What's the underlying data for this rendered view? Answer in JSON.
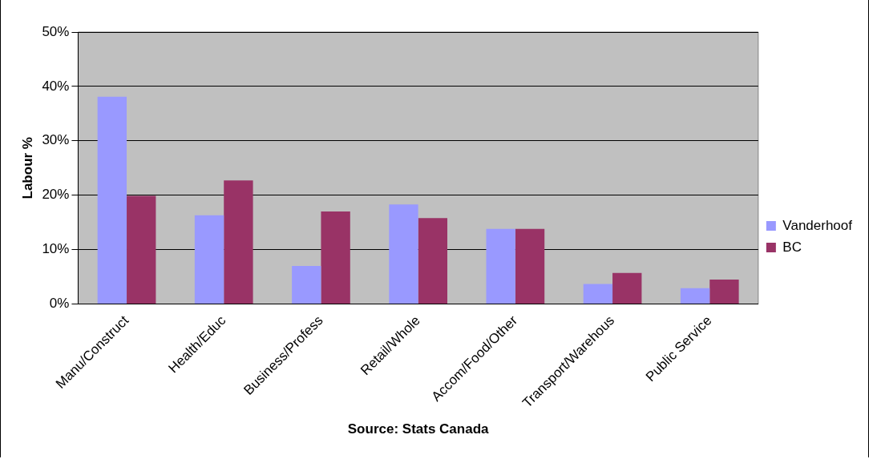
{
  "chart_data": {
    "type": "bar",
    "categories": [
      "Manu/Construct",
      "Health/Educ",
      "Business/Profess",
      "Retail/Whole",
      "Accom/Food/Other",
      "Transport/Warehous",
      "Public Service"
    ],
    "series": [
      {
        "name": "Vanderhoof",
        "color": "#9999ff",
        "values": [
          38.1,
          16.3,
          7.0,
          18.3,
          13.8,
          3.7,
          2.9
        ]
      },
      {
        "name": "BC",
        "color": "#993366",
        "values": [
          19.9,
          22.7,
          17.0,
          15.8,
          13.8,
          5.7,
          4.5
        ]
      }
    ],
    "ylabel": "Labour %",
    "xlabel": "Source: Stats Canada",
    "ylim": [
      0,
      50
    ],
    "yticks": [
      {
        "value": 0,
        "label": "0%"
      },
      {
        "value": 10,
        "label": "10%"
      },
      {
        "value": 20,
        "label": "20%"
      },
      {
        "value": 30,
        "label": "30%"
      },
      {
        "value": 40,
        "label": "40%"
      },
      {
        "value": 50,
        "label": "50%"
      }
    ],
    "grid": "y",
    "legend": "right"
  }
}
